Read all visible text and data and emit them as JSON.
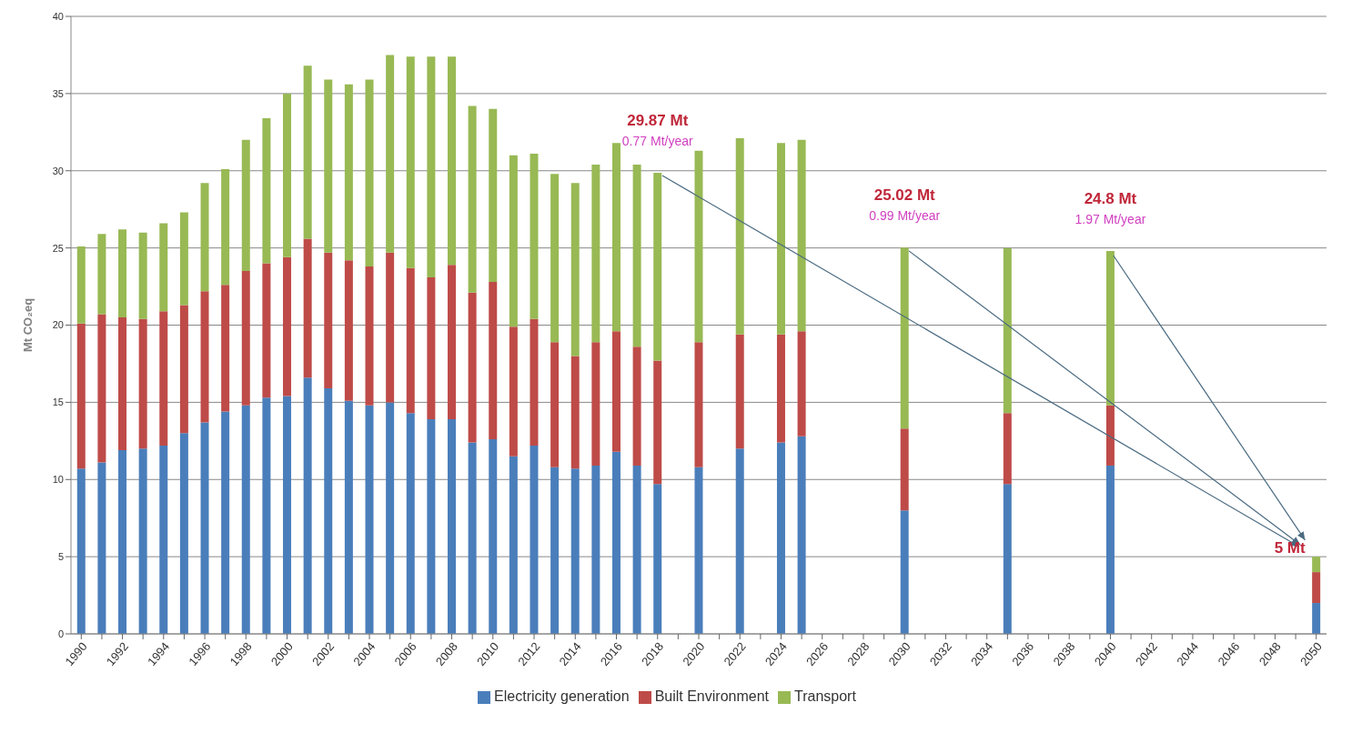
{
  "chart_data": {
    "type": "bar",
    "stacked": true,
    "ylabel": "Mt CO₂eq",
    "ylim": [
      0,
      40
    ],
    "yticks": [
      0,
      5,
      10,
      15,
      20,
      25,
      30,
      35,
      40
    ],
    "grid": "y",
    "legend": "bottom",
    "categories": [
      "1990",
      null,
      "1992",
      null,
      "1994",
      null,
      "1996",
      null,
      "1998",
      null,
      "2000",
      null,
      "2002",
      null,
      "2004",
      null,
      "2006",
      null,
      "2008",
      null,
      "2010",
      null,
      "2012",
      null,
      "2014",
      null,
      "2016",
      null,
      "2018",
      null,
      "2020",
      null,
      "2022",
      null,
      "2024",
      null,
      "2026",
      null,
      "2028",
      null,
      "2030",
      null,
      "2032",
      null,
      "2034",
      null,
      "2036",
      null,
      "2038",
      null,
      "2040",
      null,
      "2042",
      null,
      "2044",
      null,
      "2046",
      null,
      "2048",
      null,
      "2050"
    ],
    "series": [
      {
        "name": "Electricity generation",
        "color": "#4a7ebb",
        "values": [
          10.7,
          11.1,
          11.9,
          12.0,
          12.2,
          13.0,
          13.7,
          14.4,
          14.8,
          15.3,
          15.4,
          16.6,
          15.9,
          15.1,
          14.8,
          15.0,
          14.3,
          13.9,
          13.9,
          12.4,
          12.6,
          11.5,
          12.2,
          10.8,
          10.7,
          10.9,
          11.8,
          10.9,
          9.7,
          null,
          10.8,
          null,
          12.0,
          null,
          12.4,
          12.8,
          null,
          null,
          null,
          null,
          8.0,
          null,
          null,
          null,
          null,
          9.7,
          null,
          null,
          null,
          null,
          10.9,
          null,
          null,
          null,
          null,
          null,
          null,
          null,
          null,
          null,
          2.0
        ]
      },
      {
        "name": "Built Environment",
        "color": "#be4b48",
        "values": [
          9.4,
          9.6,
          8.6,
          8.4,
          8.7,
          8.3,
          8.5,
          8.2,
          8.7,
          8.7,
          9.0,
          9.0,
          8.8,
          9.1,
          9.0,
          9.7,
          9.4,
          9.2,
          10.0,
          9.7,
          10.2,
          8.4,
          8.2,
          8.1,
          7.3,
          8.0,
          7.8,
          7.7,
          8.0,
          null,
          8.1,
          null,
          7.4,
          null,
          7.0,
          6.8,
          null,
          null,
          null,
          null,
          5.3,
          null,
          null,
          null,
          null,
          4.6,
          null,
          null,
          null,
          null,
          3.9,
          null,
          null,
          null,
          null,
          null,
          null,
          null,
          null,
          null,
          2.0
        ]
      },
      {
        "name": "Transport",
        "color": "#98b954",
        "values": [
          5.0,
          5.2,
          5.7,
          5.6,
          5.7,
          6.0,
          7.0,
          7.5,
          8.5,
          9.4,
          10.6,
          11.2,
          11.2,
          11.4,
          12.1,
          12.8,
          13.7,
          14.3,
          13.5,
          12.1,
          11.2,
          11.1,
          10.7,
          10.9,
          11.2,
          11.5,
          12.2,
          11.8,
          12.17,
          null,
          12.4,
          null,
          12.7,
          null,
          12.4,
          12.4,
          null,
          null,
          null,
          null,
          11.72,
          null,
          null,
          null,
          null,
          10.7,
          null,
          null,
          null,
          null,
          10.0,
          null,
          null,
          null,
          null,
          null,
          null,
          null,
          null,
          null,
          1.0
        ]
      }
    ],
    "annotations": [
      {
        "text": "29.87 Mt",
        "x": "2018",
        "y": 29.87
      },
      {
        "text": "0.77 Mt/year",
        "x": "2018",
        "y": 29.87
      },
      {
        "text": "25.02 Mt",
        "x": "2030",
        "y": 25.02
      },
      {
        "text": "0.99 Mt/year",
        "x": "2030",
        "y": 25.02
      },
      {
        "text": "24.8 Mt",
        "x": "2040",
        "y": 24.8
      },
      {
        "text": "1.97 Mt/year",
        "x": "2040",
        "y": 24.8
      },
      {
        "text": "5 Mt",
        "x": "2050",
        "y": 5
      }
    ]
  }
}
